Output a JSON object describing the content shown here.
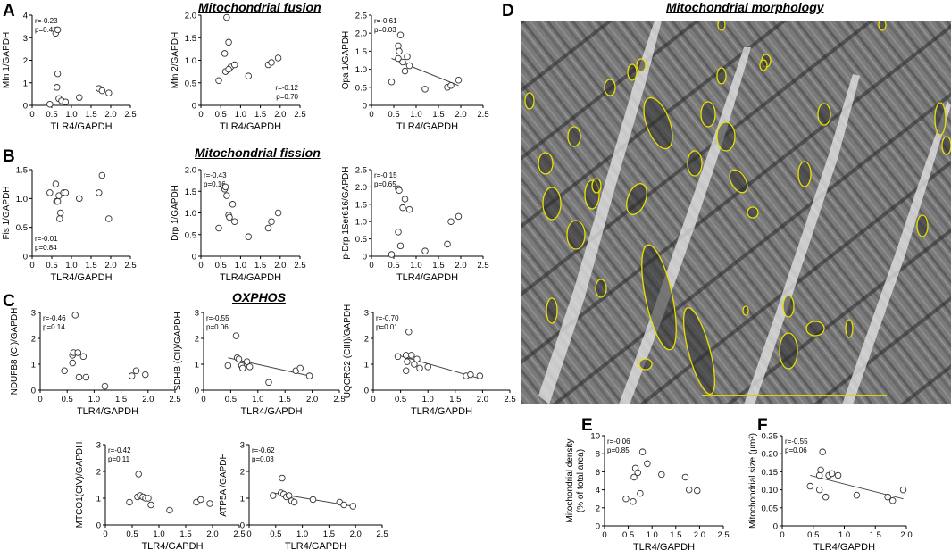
{
  "panel_letters": {
    "A": "A",
    "B": "B",
    "C": "C",
    "D": "D",
    "E": "E",
    "F": "F"
  },
  "section_titles": {
    "fusion": "Mitochondrial fusion",
    "fission": "Mitochondrial fission",
    "oxphos": "OXPHOS",
    "morphology": "Mitochondrial morphology"
  },
  "micrograph": {
    "description_colors": {
      "mito_outline": "#e8e000",
      "scale_bar": "#d9d400"
    }
  },
  "chart_data": [
    {
      "id": "mfn1",
      "type": "scatter",
      "xlabel": "TLR4/GAPDH",
      "ylabel": "Mfn 1/GAPDH",
      "xlim": [
        0,
        2.5
      ],
      "ylim": [
        0,
        4
      ],
      "xticks": [
        "0",
        "0.5",
        "1.0",
        "1.5",
        "2.0",
        "2.5"
      ],
      "yticks": [
        "0",
        "1",
        "2",
        "3",
        "4"
      ],
      "stats": [
        "r=-0.23",
        "p=0.42"
      ],
      "stats_pos": "top-left",
      "points": [
        [
          0.45,
          0.05
        ],
        [
          0.6,
          3.2
        ],
        [
          0.65,
          3.35
        ],
        [
          0.65,
          1.4
        ],
        [
          0.63,
          0.8
        ],
        [
          0.68,
          0.3
        ],
        [
          0.75,
          0.2
        ],
        [
          0.85,
          0.15
        ],
        [
          1.2,
          0.35
        ],
        [
          1.7,
          0.75
        ],
        [
          1.78,
          0.65
        ],
        [
          1.95,
          0.55
        ]
      ],
      "regression": null
    },
    {
      "id": "mfn2",
      "type": "scatter",
      "xlabel": "TLR4/GAPDH",
      "ylabel": "Mfn 2/GAPDH",
      "xlim": [
        0,
        2.5
      ],
      "ylim": [
        0,
        2.0
      ],
      "xticks": [
        "0",
        "0.5",
        "1.0",
        "1.5",
        "2.0",
        "2.5"
      ],
      "yticks": [
        "0",
        "0.5",
        "1.0",
        "1.5",
        "2.0"
      ],
      "stats": [
        "r=-0.12",
        "p=0.70"
      ],
      "stats_pos": "bottom-right",
      "points": [
        [
          0.45,
          0.55
        ],
        [
          0.6,
          1.15
        ],
        [
          0.65,
          1.95
        ],
        [
          0.7,
          1.4
        ],
        [
          0.62,
          0.75
        ],
        [
          0.75,
          0.85
        ],
        [
          0.85,
          0.9
        ],
        [
          0.7,
          0.8
        ],
        [
          1.2,
          0.65
        ],
        [
          1.7,
          0.9
        ],
        [
          1.78,
          0.95
        ],
        [
          1.95,
          1.05
        ]
      ],
      "regression": null
    },
    {
      "id": "opa1",
      "type": "scatter",
      "xlabel": "TLR4/GAPDH",
      "ylabel": "Opa 1/GAPDH",
      "xlim": [
        0,
        2.5
      ],
      "ylim": [
        0,
        2.5
      ],
      "xticks": [
        "0",
        "0.5",
        "1.0",
        "1.5",
        "2.0",
        "2.5"
      ],
      "yticks": [
        "0",
        "0.5",
        "1.0",
        "1.5",
        "2.0",
        "2.5"
      ],
      "stats": [
        "r=-0.61",
        "p=0.03"
      ],
      "stats_pos": "top-left",
      "points": [
        [
          0.45,
          0.65
        ],
        [
          0.6,
          1.65
        ],
        [
          0.65,
          1.95
        ],
        [
          0.62,
          1.5
        ],
        [
          0.6,
          1.3
        ],
        [
          0.7,
          1.2
        ],
        [
          0.75,
          0.95
        ],
        [
          0.85,
          1.1
        ],
        [
          0.8,
          1.35
        ],
        [
          1.2,
          0.45
        ],
        [
          1.7,
          0.5
        ],
        [
          1.78,
          0.55
        ],
        [
          1.95,
          0.7
        ]
      ],
      "regression": [
        [
          0.45,
          1.3
        ],
        [
          1.95,
          0.55
        ]
      ]
    },
    {
      "id": "fis1",
      "type": "scatter",
      "xlabel": "TLR4/GAPDH",
      "ylabel": "Fis 1/GAPDH",
      "xlim": [
        0,
        2.5
      ],
      "ylim": [
        0,
        1.5
      ],
      "xticks": [
        "0",
        "0.5",
        "1.0",
        "1.5",
        "2.0",
        "2.5"
      ],
      "yticks": [
        "0",
        "0.5",
        "1.0",
        "1.5"
      ],
      "stats": [
        "r=-0.01",
        "p=0.84"
      ],
      "stats_pos": "bottom-left",
      "points": [
        [
          0.45,
          1.1
        ],
        [
          0.6,
          1.25
        ],
        [
          0.62,
          0.95
        ],
        [
          0.65,
          0.95
        ],
        [
          0.68,
          1.05
        ],
        [
          0.7,
          0.65
        ],
        [
          0.72,
          0.75
        ],
        [
          0.8,
          1.1
        ],
        [
          0.85,
          1.1
        ],
        [
          1.2,
          1.0
        ],
        [
          1.7,
          1.1
        ],
        [
          1.78,
          1.4
        ],
        [
          1.95,
          0.65
        ]
      ],
      "regression": null
    },
    {
      "id": "drp1",
      "type": "scatter",
      "xlabel": "TLR4/GAPDH",
      "ylabel": "Drp 1/GAPDH",
      "xlim": [
        0,
        2.5
      ],
      "ylim": [
        0,
        2.0
      ],
      "xticks": [
        "0",
        "0.5",
        "1.0",
        "1.5",
        "2.0",
        "2.5"
      ],
      "yticks": [
        "0",
        "0.5",
        "1.0",
        "1.5",
        "2.0"
      ],
      "stats": [
        "r=-0.43",
        "p=0.16"
      ],
      "stats_pos": "top-left",
      "points": [
        [
          0.45,
          0.65
        ],
        [
          0.6,
          1.55
        ],
        [
          0.62,
          1.6
        ],
        [
          0.65,
          1.4
        ],
        [
          0.7,
          0.95
        ],
        [
          0.72,
          0.9
        ],
        [
          0.8,
          1.2
        ],
        [
          0.85,
          0.8
        ],
        [
          1.2,
          0.45
        ],
        [
          1.7,
          0.65
        ],
        [
          1.78,
          0.8
        ],
        [
          1.95,
          1.0
        ]
      ],
      "regression": null
    },
    {
      "id": "pdrp1",
      "type": "scatter",
      "xlabel": "TLR4/GAPDH",
      "ylabel": "p-Drp 1Ser616/GAPDH",
      "xlim": [
        0,
        2.5
      ],
      "ylim": [
        0,
        2.5
      ],
      "xticks": [
        "0",
        "0.5",
        "1.0",
        "1.5",
        "2.0",
        "2.5"
      ],
      "yticks": [
        "0",
        "0.5",
        "1.0",
        "1.5",
        "2.0",
        "2.5"
      ],
      "stats": [
        "r=-0.15",
        "p=0.65"
      ],
      "stats_pos": "top-left",
      "points": [
        [
          0.45,
          0.05
        ],
        [
          0.6,
          1.95
        ],
        [
          0.62,
          1.9
        ],
        [
          0.65,
          0.3
        ],
        [
          0.6,
          0.7
        ],
        [
          0.7,
          1.4
        ],
        [
          0.75,
          1.65
        ],
        [
          0.85,
          1.35
        ],
        [
          1.2,
          0.15
        ],
        [
          1.7,
          0.35
        ],
        [
          1.78,
          1.0
        ],
        [
          1.95,
          1.15
        ]
      ],
      "regression": null
    },
    {
      "id": "ndufb8",
      "type": "scatter",
      "xlabel": "TLR4/GAPDH",
      "ylabel": "NDUFB8 (CI)/GAPDH",
      "xlim": [
        0,
        2.5
      ],
      "ylim": [
        0,
        3
      ],
      "xticks": [
        "0",
        "0.5",
        "1.0",
        "1.5",
        "2.0",
        "2.5"
      ],
      "yticks": [
        "0",
        "1",
        "2",
        "3"
      ],
      "stats": [
        "r=-0.46",
        "p=0.14"
      ],
      "stats_pos": "top-left",
      "points": [
        [
          0.45,
          0.75
        ],
        [
          0.6,
          1.35
        ],
        [
          0.62,
          1.45
        ],
        [
          0.65,
          2.9
        ],
        [
          0.6,
          1.05
        ],
        [
          0.7,
          1.45
        ],
        [
          0.72,
          0.5
        ],
        [
          0.8,
          1.3
        ],
        [
          0.85,
          0.5
        ],
        [
          1.2,
          0.15
        ],
        [
          1.7,
          0.55
        ],
        [
          1.78,
          0.75
        ],
        [
          1.95,
          0.6
        ]
      ],
      "regression": null
    },
    {
      "id": "sdhb",
      "type": "scatter",
      "xlabel": "TLR4/GAPDH",
      "ylabel": "SDHB (CII)/GAPDH",
      "xlim": [
        0,
        2.5
      ],
      "ylim": [
        0,
        3
      ],
      "xticks": [
        "0",
        "0.5",
        "1.0",
        "1.5",
        "2.0",
        "2.5"
      ],
      "yticks": [
        "0",
        "1",
        "2",
        "3"
      ],
      "stats": [
        "r=-0.55",
        "p=0.06"
      ],
      "stats_pos": "top-left",
      "points": [
        [
          0.45,
          0.95
        ],
        [
          0.6,
          2.1
        ],
        [
          0.62,
          1.25
        ],
        [
          0.65,
          1.2
        ],
        [
          0.7,
          0.95
        ],
        [
          0.72,
          0.85
        ],
        [
          0.8,
          1.1
        ],
        [
          0.85,
          0.9
        ],
        [
          1.2,
          0.3
        ],
        [
          1.7,
          0.75
        ],
        [
          1.78,
          0.85
        ],
        [
          1.95,
          0.55
        ]
      ],
      "regression": [
        [
          0.45,
          1.25
        ],
        [
          1.95,
          0.55
        ]
      ]
    },
    {
      "id": "uqcrc2",
      "type": "scatter",
      "xlabel": "TLR4/GAPDH",
      "ylabel": "UQCRC2 (CIII)/GAPDH",
      "xlim": [
        0,
        2.5
      ],
      "ylim": [
        0,
        3
      ],
      "xticks": [
        "0",
        "0.5",
        "1.0",
        "1.5",
        "2.0",
        "2.5"
      ],
      "yticks": [
        "0",
        "1",
        "2",
        "3"
      ],
      "stats": [
        "r=-0.70",
        "p=0.01"
      ],
      "stats_pos": "top-left",
      "points": [
        [
          0.45,
          1.3
        ],
        [
          0.6,
          1.35
        ],
        [
          0.62,
          1.1
        ],
        [
          0.65,
          2.25
        ],
        [
          0.6,
          0.75
        ],
        [
          0.7,
          1.35
        ],
        [
          0.75,
          1.0
        ],
        [
          0.8,
          1.2
        ],
        [
          0.85,
          0.85
        ],
        [
          1.0,
          0.9
        ],
        [
          1.7,
          0.55
        ],
        [
          1.78,
          0.6
        ],
        [
          1.95,
          0.55
        ]
      ],
      "regression": [
        [
          0.45,
          1.35
        ],
        [
          1.95,
          0.45
        ]
      ]
    },
    {
      "id": "mtco1",
      "type": "scatter",
      "xlabel": "TLR4/GAPDH",
      "ylabel": "MTCO1(CIV)/GAPDH",
      "xlim": [
        0,
        2.5
      ],
      "ylim": [
        0,
        3
      ],
      "xticks": [
        "0",
        "0.5",
        "1.0",
        "1.5",
        "2.0",
        "2.5"
      ],
      "yticks": [
        "0",
        "1",
        "2",
        "3"
      ],
      "stats": [
        "r=-0.42",
        "p=0.11"
      ],
      "stats_pos": "top-left",
      "points": [
        [
          0.45,
          0.85
        ],
        [
          0.6,
          1.05
        ],
        [
          0.62,
          1.9
        ],
        [
          0.65,
          1.1
        ],
        [
          0.7,
          1.05
        ],
        [
          0.75,
          1.0
        ],
        [
          0.8,
          1.0
        ],
        [
          0.85,
          0.75
        ],
        [
          1.2,
          0.55
        ],
        [
          1.7,
          0.85
        ],
        [
          1.78,
          0.95
        ],
        [
          1.95,
          0.8
        ]
      ],
      "regression": null
    },
    {
      "id": "atp5a",
      "type": "scatter",
      "xlabel": "TLR4/GAPDH",
      "ylabel": "ATP5A /GAPDH",
      "xlim": [
        0,
        2.5
      ],
      "ylim": [
        0,
        3
      ],
      "xticks": [
        "0",
        "0.5",
        "1.0",
        "1.5",
        "2.0",
        "2.5"
      ],
      "yticks": [
        "0",
        "1",
        "2",
        "3"
      ],
      "stats": [
        "r=-0.62",
        "p=0.03"
      ],
      "stats_pos": "top-left",
      "points": [
        [
          0.45,
          1.1
        ],
        [
          0.6,
          1.2
        ],
        [
          0.62,
          1.75
        ],
        [
          0.65,
          1.15
        ],
        [
          0.7,
          1.05
        ],
        [
          0.75,
          1.1
        ],
        [
          0.8,
          0.9
        ],
        [
          0.85,
          0.85
        ],
        [
          1.2,
          0.95
        ],
        [
          1.7,
          0.85
        ],
        [
          1.78,
          0.75
        ],
        [
          1.95,
          0.7
        ]
      ],
      "regression": [
        [
          0.45,
          1.2
        ],
        [
          1.95,
          0.7
        ]
      ]
    },
    {
      "id": "density",
      "type": "scatter",
      "xlabel": "TLR4/GAPDH",
      "ylabel": [
        "Mitochondrial density",
        "(% of total area)"
      ],
      "xlim": [
        0,
        2.5
      ],
      "ylim": [
        0,
        10
      ],
      "xticks": [
        "0",
        "0.5",
        "1.0",
        "1.5",
        "2.0",
        "2.5"
      ],
      "yticks": [
        "0",
        "2",
        "4",
        "6",
        "8",
        "10"
      ],
      "stats": [
        "r=-0.06",
        "p=0.85"
      ],
      "stats_pos": "top-left",
      "points": [
        [
          0.45,
          3.0
        ],
        [
          0.6,
          2.7
        ],
        [
          0.62,
          5.4
        ],
        [
          0.65,
          6.4
        ],
        [
          0.7,
          5.9
        ],
        [
          0.75,
          3.6
        ],
        [
          0.8,
          8.2
        ],
        [
          0.9,
          6.9
        ],
        [
          1.2,
          5.7
        ],
        [
          1.7,
          5.4
        ],
        [
          1.78,
          4.0
        ],
        [
          1.95,
          3.9
        ]
      ],
      "regression": null
    },
    {
      "id": "size",
      "type": "scatter",
      "xlabel": "TLR4/GAPDH",
      "ylabel": "Mitochondrial size (µm²)",
      "xlim": [
        0,
        2.0
      ],
      "ylim": [
        0,
        0.25
      ],
      "xticks": [
        "0",
        "0.5",
        "1.0",
        "1.5",
        "2.0"
      ],
      "yticks": [
        "0",
        "0.05",
        "0.10",
        "0.15",
        "0.20",
        "0.25"
      ],
      "stats": [
        "r=-0.55",
        "p=0.06"
      ],
      "stats_pos": "top-left",
      "points": [
        [
          0.45,
          0.11
        ],
        [
          0.6,
          0.14
        ],
        [
          0.62,
          0.155
        ],
        [
          0.65,
          0.205
        ],
        [
          0.6,
          0.1
        ],
        [
          0.7,
          0.08
        ],
        [
          0.75,
          0.14
        ],
        [
          0.8,
          0.145
        ],
        [
          0.9,
          0.14
        ],
        [
          1.2,
          0.085
        ],
        [
          1.7,
          0.08
        ],
        [
          1.78,
          0.07
        ],
        [
          1.95,
          0.1
        ]
      ],
      "regression": [
        [
          0.45,
          0.14
        ],
        [
          1.95,
          0.075
        ]
      ]
    }
  ]
}
